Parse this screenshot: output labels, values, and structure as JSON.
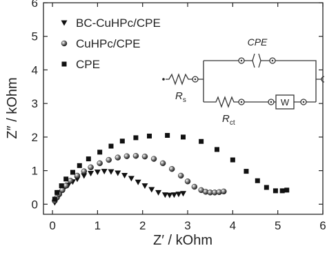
{
  "chart_data": {
    "type": "scatter",
    "xlabel": "Z′ / kOhm",
    "ylabel": "Z″ / kOhm",
    "xlim": [
      -0.2,
      6
    ],
    "ylim": [
      -0.3,
      6
    ],
    "xticks": [
      0,
      1,
      2,
      3,
      4,
      5,
      6
    ],
    "yticks": [
      0,
      1,
      2,
      3,
      4,
      5,
      6
    ],
    "legend": "upper left",
    "series": [
      {
        "name": "BC-CuHPc/CPE",
        "marker": "triangle-down",
        "color": "#111111",
        "x": [
          0.05,
          0.08,
          0.12,
          0.18,
          0.25,
          0.35,
          0.45,
          0.55,
          0.7,
          0.85,
          1.0,
          1.15,
          1.3,
          1.45,
          1.6,
          1.75,
          1.9,
          2.05,
          2.2,
          2.35,
          2.5,
          2.6,
          2.7,
          2.8,
          2.9
        ],
        "values": [
          0.05,
          0.15,
          0.25,
          0.35,
          0.45,
          0.57,
          0.67,
          0.75,
          0.85,
          0.92,
          0.96,
          0.98,
          0.97,
          0.93,
          0.86,
          0.77,
          0.66,
          0.55,
          0.44,
          0.35,
          0.28,
          0.27,
          0.28,
          0.3,
          0.32
        ]
      },
      {
        "name": "CuHPc/CPE",
        "marker": "sphere",
        "color": "#111111",
        "x": [
          0.05,
          0.1,
          0.15,
          0.22,
          0.3,
          0.4,
          0.55,
          0.7,
          0.85,
          1.05,
          1.25,
          1.45,
          1.65,
          1.85,
          2.05,
          2.25,
          2.45,
          2.65,
          2.85,
          3.0,
          3.15,
          3.3,
          3.4,
          3.5,
          3.6,
          3.7,
          3.8
        ],
        "values": [
          0.1,
          0.2,
          0.3,
          0.42,
          0.55,
          0.7,
          0.85,
          0.98,
          1.1,
          1.22,
          1.32,
          1.39,
          1.43,
          1.44,
          1.42,
          1.35,
          1.22,
          1.05,
          0.85,
          0.68,
          0.52,
          0.42,
          0.37,
          0.35,
          0.35,
          0.36,
          0.38
        ]
      },
      {
        "name": "CPE",
        "marker": "square",
        "color": "#111111",
        "x": [
          0.05,
          0.1,
          0.2,
          0.3,
          0.45,
          0.6,
          0.8,
          1.05,
          1.3,
          1.55,
          1.85,
          2.15,
          2.55,
          2.9,
          3.3,
          3.65,
          4.0,
          4.3,
          4.55,
          4.75,
          4.95,
          5.1,
          5.2
        ],
        "values": [
          0.15,
          0.35,
          0.55,
          0.75,
          0.95,
          1.15,
          1.35,
          1.55,
          1.73,
          1.88,
          1.98,
          2.03,
          2.05,
          2.0,
          1.87,
          1.63,
          1.32,
          0.98,
          0.7,
          0.5,
          0.4,
          0.4,
          0.42
        ]
      }
    ],
    "inset": {
      "cpe": "CPE",
      "rs": {
        "main": "R",
        "sub": "s"
      },
      "rct": {
        "main": "R",
        "sub": "ct"
      },
      "w": "W"
    }
  }
}
